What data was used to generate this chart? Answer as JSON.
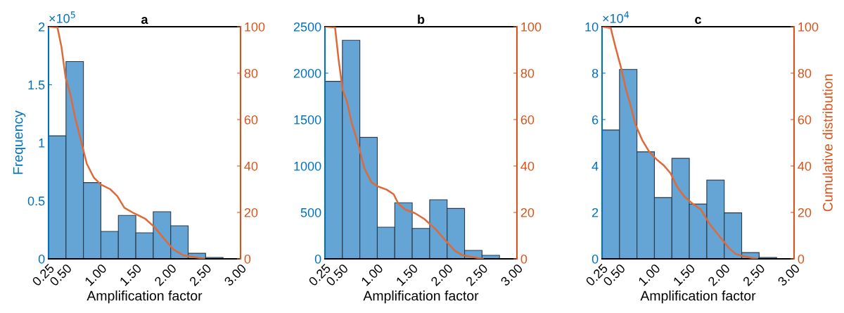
{
  "chart_data": [
    {
      "type": "histogram",
      "title": "a",
      "xlabel": "Amplification factor",
      "ylabel": "Frequency",
      "annotations": [
        "×10$^{5}$"
      ],
      "bins": [
        0.25,
        0.5,
        0.75,
        1.0,
        1.25,
        1.5,
        1.75,
        2.0,
        2.25,
        2.5,
        2.75,
        3.0
      ],
      "values": [
        1.06,
        1.7,
        0.657,
        0.236,
        0.374,
        0.224,
        0.406,
        0.285,
        0.048,
        0.012,
        0
      ],
      "color": "#64a5d6",
      "xlim": [
        0.25,
        3.0
      ],
      "xticks": [
        {
          "value": 0.25,
          "label": "0.25"
        },
        {
          "value": 0.5,
          "label": "0.50"
        },
        {
          "value": 1.0,
          "label": "1.00"
        },
        {
          "value": 1.5,
          "label": "1.50"
        },
        {
          "value": 2.0,
          "label": "2.00"
        },
        {
          "value": 2.5,
          "label": "2.50"
        },
        {
          "value": 3.0,
          "label": "3.00"
        }
      ],
      "ylim": [
        0,
        2
      ],
      "yticks": [
        0,
        0.5,
        1,
        1.5,
        2
      ],
      "y2lim": [
        0,
        100
      ],
      "y2ticks": [
        0,
        20,
        40,
        60,
        80,
        100
      ],
      "grid": false,
      "series": [
        {
          "type": "line",
          "axis": "y2",
          "color": "#dd6a3a",
          "x": [
            0.25,
            0.378,
            0.435,
            0.495,
            0.562,
            0.63,
            0.714,
            0.798,
            0.899,
            1.0,
            1.134,
            1.235,
            1.336,
            1.47,
            1.638,
            1.77,
            1.907,
            2.04,
            2.18,
            2.34,
            2.48
          ],
          "values": [
            100,
            99.7,
            91.4,
            78,
            71,
            61,
            51,
            41,
            35,
            32,
            30,
            27,
            22,
            19.7,
            17.2,
            13.6,
            8.6,
            4,
            1.5,
            0.7,
            0.1
          ]
        }
      ]
    },
    {
      "type": "histogram",
      "title": "b",
      "xlabel": "Amplification factor",
      "bins": [
        0.25,
        0.5,
        0.75,
        1.0,
        1.25,
        1.5,
        1.75,
        2.0,
        2.25,
        2.5,
        2.75,
        3.0
      ],
      "values": [
        1912,
        2354,
        1308,
        341,
        604,
        328,
        636,
        543,
        91,
        38,
        0
      ],
      "color": "#64a5d6",
      "xlim": [
        0.25,
        3.0
      ],
      "xticks": [
        {
          "value": 0.25,
          "label": "0.25"
        },
        {
          "value": 0.5,
          "label": "0.50"
        },
        {
          "value": 1.0,
          "label": "1.00"
        },
        {
          "value": 1.5,
          "label": "1.50"
        },
        {
          "value": 2.0,
          "label": "2.00"
        },
        {
          "value": 2.5,
          "label": "2.50"
        },
        {
          "value": 3.0,
          "label": "3.00"
        }
      ],
      "ylim": [
        0,
        2500
      ],
      "yticks": [
        0,
        500,
        1000,
        1500,
        2000,
        2500
      ],
      "y2lim": [
        0,
        100
      ],
      "y2ticks": [
        0,
        20,
        40,
        60,
        80,
        100
      ],
      "grid": false,
      "series": [
        {
          "type": "line",
          "axis": "y2",
          "color": "#dd6a3a",
          "x": [
            0.25,
            0.395,
            0.445,
            0.502,
            0.563,
            0.63,
            0.73,
            0.815,
            0.916,
            1.0,
            1.134,
            1.235,
            1.302,
            1.403,
            1.537,
            1.672,
            1.84,
            1.974,
            2.109,
            2.21,
            2.378,
            2.51
          ],
          "values": [
            100,
            99.7,
            86,
            73,
            68,
            59,
            49,
            39,
            33,
            31.3,
            29.8,
            27.8,
            23.7,
            21.2,
            19.7,
            17.2,
            12.6,
            8,
            3.5,
            1.7,
            0.7,
            0
          ]
        }
      ]
    },
    {
      "type": "histogram",
      "title": "c",
      "xlabel": "Amplification factor",
      "y2label": "Cumulative distribution",
      "annotations": [
        "×10$^{4}$"
      ],
      "bins": [
        0.25,
        0.5,
        0.75,
        1.0,
        1.25,
        1.5,
        1.75,
        2.0,
        2.25,
        2.5,
        2.75,
        3.0
      ],
      "values": [
        5.55,
        8.16,
        4.61,
        2.64,
        4.33,
        2.36,
        3.39,
        1.98,
        0.27,
        0.06,
        0
      ],
      "color": "#64a5d6",
      "xlim": [
        0.25,
        3.0
      ],
      "xticks": [
        {
          "value": 0.25,
          "label": "0.25"
        },
        {
          "value": 0.5,
          "label": "0.50"
        },
        {
          "value": 1.0,
          "label": "1.00"
        },
        {
          "value": 1.5,
          "label": "1.50"
        },
        {
          "value": 2.0,
          "label": "2.00"
        },
        {
          "value": 2.5,
          "label": "2.50"
        },
        {
          "value": 3.0,
          "label": "3.00"
        }
      ],
      "ylim": [
        0,
        10
      ],
      "yticks": [
        0,
        2,
        4,
        6,
        8,
        10
      ],
      "y2lim": [
        0,
        100
      ],
      "y2ticks": [
        0,
        20,
        40,
        60,
        80,
        100
      ],
      "grid": false,
      "series": [
        {
          "type": "line",
          "axis": "y2",
          "color": "#dd6a3a",
          "x": [
            0.25,
            0.374,
            0.441,
            0.525,
            0.593,
            0.66,
            0.727,
            0.828,
            0.928,
            1.029,
            1.13,
            1.23,
            1.33,
            1.43,
            1.53,
            1.667,
            1.8,
            1.935,
            2.07,
            2.17,
            2.34,
            2.47
          ],
          "values": [
            100,
            99.5,
            91.4,
            82,
            73,
            66,
            58,
            51,
            46,
            42.9,
            40.4,
            36.9,
            30.8,
            26.8,
            24.2,
            21.2,
            14.6,
            9.6,
            4.5,
            2,
            0.7,
            0
          ]
        }
      ]
    }
  ]
}
